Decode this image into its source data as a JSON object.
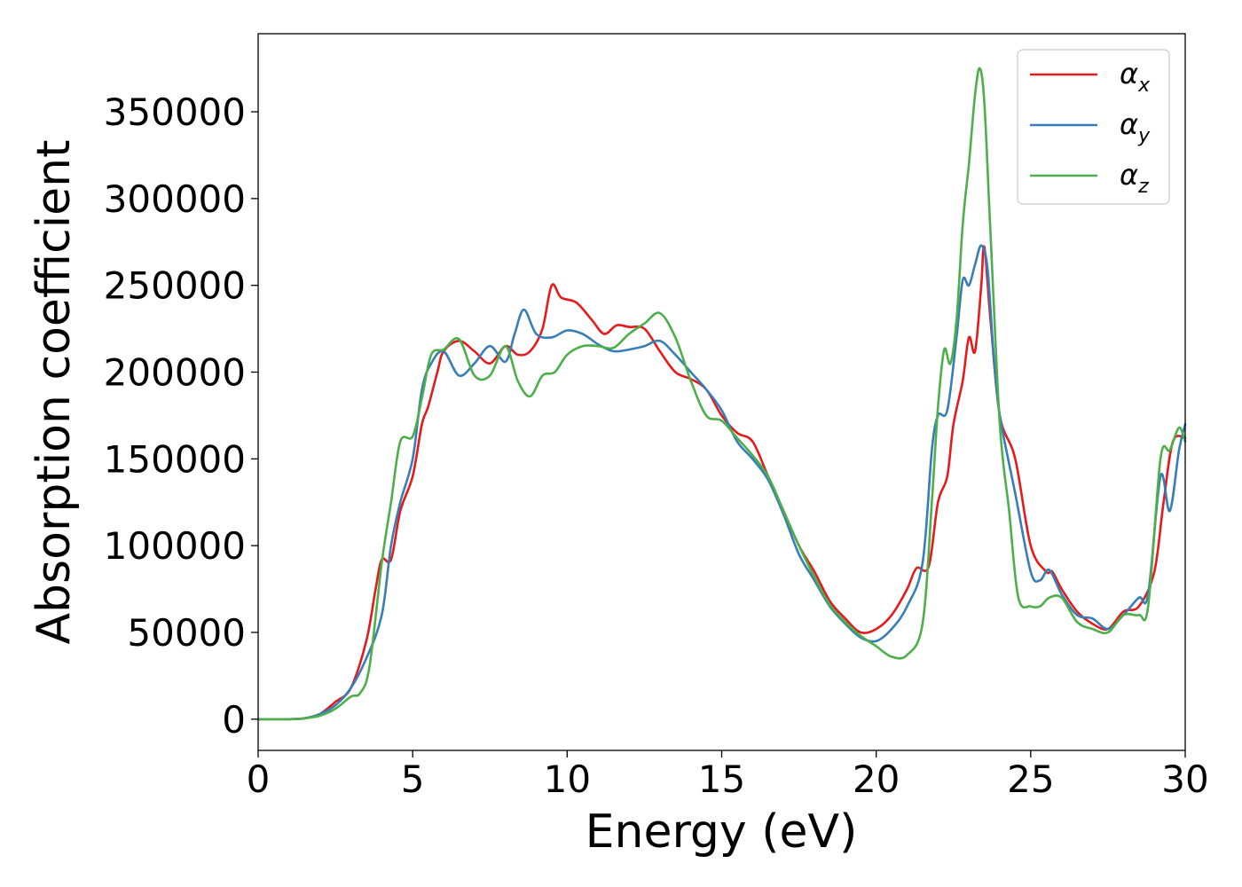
{
  "chart_data": {
    "type": "line",
    "xlabel": "Energy (eV)",
    "ylabel": "Absorption coefficient",
    "xlim": [
      0,
      30
    ],
    "ylim": [
      -18000,
      395000
    ],
    "xticks": [
      "0",
      "5",
      "10",
      "15",
      "20",
      "25",
      "30"
    ],
    "xtick_values": [
      0,
      5,
      10,
      15,
      20,
      25,
      30
    ],
    "yticks": [
      "0",
      "50000",
      "100000",
      "150000",
      "200000",
      "250000",
      "300000",
      "350000"
    ],
    "ytick_values": [
      0,
      50000,
      100000,
      150000,
      200000,
      250000,
      300000,
      350000
    ],
    "grid": false,
    "legend_position": "top-right",
    "series": [
      {
        "name": "α",
        "sub": "x",
        "color": "#e41a1c",
        "points": [
          [
            0,
            0
          ],
          [
            1,
            0
          ],
          [
            1.5,
            500
          ],
          [
            2,
            3000
          ],
          [
            2.5,
            10000
          ],
          [
            3,
            18000
          ],
          [
            3.5,
            45000
          ],
          [
            3.8,
            75000
          ],
          [
            4,
            92000
          ],
          [
            4.3,
            92000
          ],
          [
            4.6,
            120000
          ],
          [
            5,
            140000
          ],
          [
            5.3,
            170000
          ],
          [
            5.5,
            180000
          ],
          [
            5.8,
            200000
          ],
          [
            6,
            212000
          ],
          [
            6.5,
            218000
          ],
          [
            7,
            212000
          ],
          [
            7.5,
            205000
          ],
          [
            8,
            215000
          ],
          [
            8.4,
            210000
          ],
          [
            8.8,
            212000
          ],
          [
            9.2,
            225000
          ],
          [
            9.5,
            250000
          ],
          [
            9.8,
            243000
          ],
          [
            10.3,
            240000
          ],
          [
            10.8,
            230000
          ],
          [
            11.2,
            222000
          ],
          [
            11.6,
            227000
          ],
          [
            12,
            226000
          ],
          [
            12.5,
            225000
          ],
          [
            13,
            212000
          ],
          [
            13.5,
            200000
          ],
          [
            14,
            196000
          ],
          [
            14.5,
            190000
          ],
          [
            15,
            175000
          ],
          [
            15.5,
            165000
          ],
          [
            16,
            160000
          ],
          [
            16.5,
            140000
          ],
          [
            17,
            120000
          ],
          [
            17.5,
            100000
          ],
          [
            18,
            85000
          ],
          [
            18.5,
            68000
          ],
          [
            19,
            58000
          ],
          [
            19.5,
            50000
          ],
          [
            20,
            52000
          ],
          [
            20.5,
            60000
          ],
          [
            21,
            75000
          ],
          [
            21.3,
            87000
          ],
          [
            21.7,
            88000
          ],
          [
            22,
            125000
          ],
          [
            22.3,
            140000
          ],
          [
            22.5,
            170000
          ],
          [
            22.8,
            195000
          ],
          [
            23,
            220000
          ],
          [
            23.2,
            212000
          ],
          [
            23.4,
            250000
          ],
          [
            23.5,
            272000
          ],
          [
            23.7,
            230000
          ],
          [
            24,
            175000
          ],
          [
            24.5,
            150000
          ],
          [
            25,
            100000
          ],
          [
            25.5,
            85000
          ],
          [
            25.7,
            85000
          ],
          [
            26,
            75000
          ],
          [
            26.5,
            62000
          ],
          [
            27,
            55000
          ],
          [
            27.5,
            52000
          ],
          [
            28,
            62000
          ],
          [
            28.5,
            65000
          ],
          [
            29,
            85000
          ],
          [
            29.3,
            125000
          ],
          [
            29.6,
            160000
          ],
          [
            30,
            162000
          ]
        ]
      },
      {
        "name": "α",
        "sub": "y",
        "color": "#377eb8",
        "points": [
          [
            0,
            0
          ],
          [
            1,
            0
          ],
          [
            1.5,
            500
          ],
          [
            2,
            3000
          ],
          [
            2.5,
            8000
          ],
          [
            3,
            18000
          ],
          [
            3.5,
            35000
          ],
          [
            4,
            60000
          ],
          [
            4.3,
            100000
          ],
          [
            4.6,
            125000
          ],
          [
            5,
            150000
          ],
          [
            5.3,
            190000
          ],
          [
            5.6,
            205000
          ],
          [
            6,
            212000
          ],
          [
            6.5,
            198000
          ],
          [
            7,
            205000
          ],
          [
            7.5,
            215000
          ],
          [
            8,
            206000
          ],
          [
            8.3,
            222000
          ],
          [
            8.6,
            236000
          ],
          [
            9,
            222000
          ],
          [
            9.5,
            220000
          ],
          [
            10,
            224000
          ],
          [
            10.5,
            222000
          ],
          [
            11,
            216000
          ],
          [
            11.5,
            212000
          ],
          [
            12,
            213000
          ],
          [
            12.5,
            215000
          ],
          [
            13,
            218000
          ],
          [
            13.5,
            210000
          ],
          [
            14,
            200000
          ],
          [
            14.5,
            190000
          ],
          [
            15,
            178000
          ],
          [
            15.5,
            160000
          ],
          [
            16,
            150000
          ],
          [
            16.5,
            138000
          ],
          [
            17,
            118000
          ],
          [
            17.5,
            95000
          ],
          [
            18,
            80000
          ],
          [
            18.5,
            65000
          ],
          [
            19,
            55000
          ],
          [
            19.5,
            47000
          ],
          [
            20,
            45000
          ],
          [
            20.5,
            52000
          ],
          [
            21,
            65000
          ],
          [
            21.5,
            90000
          ],
          [
            21.8,
            155000
          ],
          [
            22,
            175000
          ],
          [
            22.3,
            178000
          ],
          [
            22.6,
            220000
          ],
          [
            22.8,
            253000
          ],
          [
            23,
            250000
          ],
          [
            23.2,
            262000
          ],
          [
            23.4,
            273000
          ],
          [
            23.6,
            260000
          ],
          [
            23.8,
            210000
          ],
          [
            24,
            175000
          ],
          [
            24.5,
            130000
          ],
          [
            25,
            85000
          ],
          [
            25.3,
            80000
          ],
          [
            25.6,
            86000
          ],
          [
            26,
            72000
          ],
          [
            26.5,
            60000
          ],
          [
            27,
            58000
          ],
          [
            27.5,
            52000
          ],
          [
            28,
            60000
          ],
          [
            28.5,
            70000
          ],
          [
            28.8,
            72000
          ],
          [
            29.2,
            140000
          ],
          [
            29.5,
            120000
          ],
          [
            29.8,
            155000
          ],
          [
            30,
            170000
          ]
        ]
      },
      {
        "name": "α",
        "sub": "z",
        "color": "#4daf4a",
        "points": [
          [
            0,
            0
          ],
          [
            1,
            0
          ],
          [
            1.5,
            500
          ],
          [
            2,
            2000
          ],
          [
            2.5,
            6000
          ],
          [
            3,
            13000
          ],
          [
            3.3,
            15000
          ],
          [
            3.6,
            30000
          ],
          [
            4,
            90000
          ],
          [
            4.3,
            125000
          ],
          [
            4.6,
            160000
          ],
          [
            5,
            163000
          ],
          [
            5.3,
            185000
          ],
          [
            5.6,
            210000
          ],
          [
            6,
            213000
          ],
          [
            6.5,
            219000
          ],
          [
            7,
            198000
          ],
          [
            7.5,
            198000
          ],
          [
            8,
            215000
          ],
          [
            8.4,
            195000
          ],
          [
            8.8,
            186000
          ],
          [
            9.2,
            198000
          ],
          [
            9.6,
            200000
          ],
          [
            10,
            210000
          ],
          [
            10.5,
            215000
          ],
          [
            11,
            215000
          ],
          [
            11.5,
            214000
          ],
          [
            12,
            222000
          ],
          [
            12.5,
            228000
          ],
          [
            13,
            234000
          ],
          [
            13.5,
            220000
          ],
          [
            14,
            195000
          ],
          [
            14.5,
            175000
          ],
          [
            15,
            172000
          ],
          [
            15.5,
            162000
          ],
          [
            16,
            152000
          ],
          [
            16.5,
            140000
          ],
          [
            17,
            120000
          ],
          [
            17.5,
            100000
          ],
          [
            18,
            82000
          ],
          [
            18.5,
            66000
          ],
          [
            19,
            56000
          ],
          [
            19.5,
            48000
          ],
          [
            20,
            42000
          ],
          [
            20.5,
            36000
          ],
          [
            21,
            37000
          ],
          [
            21.5,
            55000
          ],
          [
            21.8,
            125000
          ],
          [
            22,
            180000
          ],
          [
            22.2,
            213000
          ],
          [
            22.4,
            205000
          ],
          [
            22.6,
            230000
          ],
          [
            22.8,
            285000
          ],
          [
            23,
            320000
          ],
          [
            23.2,
            360000
          ],
          [
            23.35,
            375000
          ],
          [
            23.5,
            355000
          ],
          [
            23.7,
            280000
          ],
          [
            24,
            170000
          ],
          [
            24.3,
            120000
          ],
          [
            24.6,
            70000
          ],
          [
            25,
            65000
          ],
          [
            25.3,
            65000
          ],
          [
            25.6,
            70000
          ],
          [
            26,
            70000
          ],
          [
            26.5,
            56000
          ],
          [
            27,
            52000
          ],
          [
            27.5,
            50000
          ],
          [
            28,
            60000
          ],
          [
            28.5,
            60000
          ],
          [
            28.8,
            65000
          ],
          [
            29.2,
            150000
          ],
          [
            29.5,
            155000
          ],
          [
            29.8,
            168000
          ],
          [
            30,
            160000
          ]
        ]
      }
    ]
  }
}
